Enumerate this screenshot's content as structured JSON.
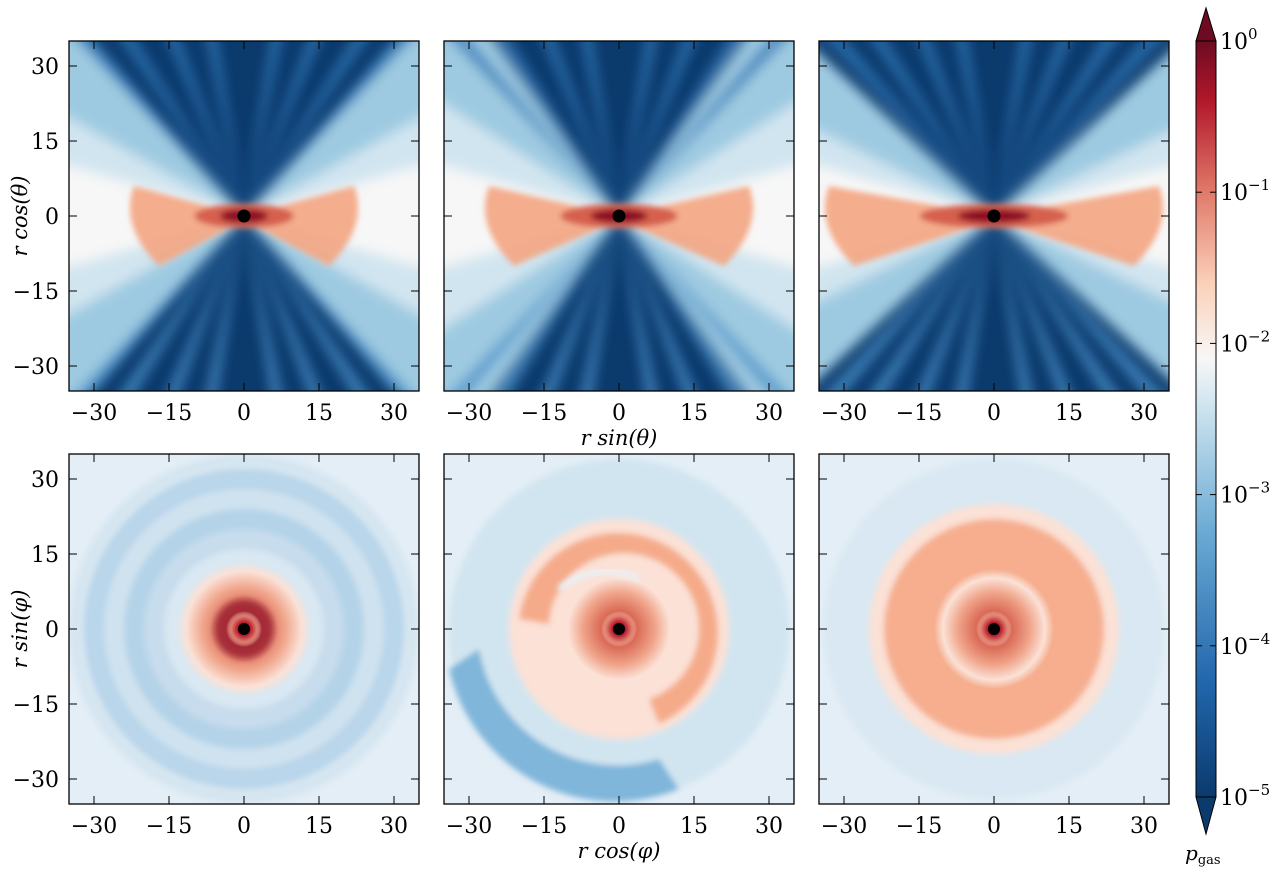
{
  "chart_data": {
    "type": "heatmap",
    "layout": "2x3 panel grid of gas pressure maps with shared colorbar",
    "xlim": [
      -35,
      35
    ],
    "ylim": [
      -35,
      35
    ],
    "ticks": [
      -30,
      -15,
      0,
      15,
      30
    ],
    "tick_labels": [
      "−30",
      "−15",
      "0",
      "15",
      "30"
    ],
    "rows": [
      {
        "view": "meridional",
        "ylabel": "r cos(θ)",
        "xlabel": "r sin(θ)"
      },
      {
        "view": "equatorial",
        "ylabel": "r sin(φ)",
        "xlabel": "r cos(φ)"
      }
    ],
    "colormap": "RdBu_r",
    "colors": {
      "low": "#0b3a6d",
      "mid": "#f7f7f7",
      "high": "#6d0b22"
    },
    "colorbar": {
      "label": "p_gas",
      "scale": "log",
      "range": [
        1e-05,
        1
      ],
      "extend": "both",
      "ticks": [
        {
          "exp": "0",
          "value": 1
        },
        {
          "exp": "−1",
          "value": 0.1
        },
        {
          "exp": "−2",
          "value": 0.01
        },
        {
          "exp": "−3",
          "value": 0.001
        },
        {
          "exp": "−4",
          "value": 0.0001
        },
        {
          "exp": "−5",
          "value": 1e-05
        }
      ],
      "tick_base": "10"
    }
  }
}
